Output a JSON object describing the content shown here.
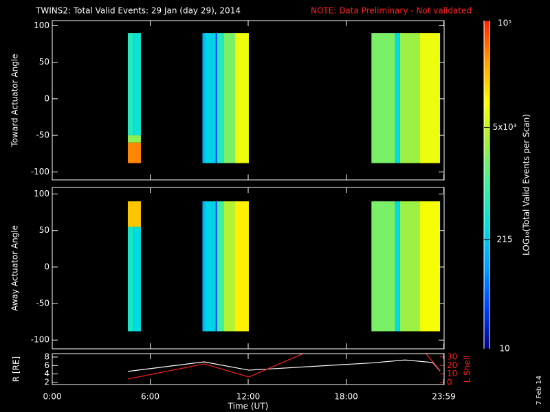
{
  "title": "TWINS2: Total Valid Events: 29 Jan (day  29), 2014",
  "note": "NOTE: Data Preliminary - Not validated",
  "stamp": "7 Feb 14",
  "colorbar": {
    "label": "LOG₁₀(Total Valid Events per Scan)",
    "log": true,
    "lim": [
      10,
      100000
    ],
    "ticks": [
      {
        "value": 100000,
        "label": "10⁵"
      },
      {
        "value": 5000,
        "label": "5x10³"
      },
      215,
      10
    ],
    "colors": [
      "#000080",
      "#0040ff",
      "#00a0ff",
      "#00e0e0",
      "#40f0a0",
      "#a0f040",
      "#ffff00",
      "#ffa000",
      "#ff2000"
    ]
  },
  "chart_data": [
    {
      "type": "heatmap",
      "ylabel": "Toward Actuator Angle",
      "xlim": [
        0,
        24
      ],
      "ylim": [
        -111,
        107
      ],
      "yticks": [
        100,
        50,
        0,
        -50,
        -100
      ],
      "cells": [
        {
          "t": [
            4.63,
            5.0
          ],
          "angle": [
            -50,
            90
          ],
          "value": 600
        },
        {
          "t": [
            5.0,
            5.43
          ],
          "angle": [
            -50,
            90
          ],
          "value": 400
        },
        {
          "t": [
            4.63,
            5.43
          ],
          "angle": [
            -60,
            -50
          ],
          "value": 2500
        },
        {
          "t": [
            4.63,
            5.43
          ],
          "angle": [
            -88,
            -60
          ],
          "value": 40000
        },
        {
          "t": [
            9.2,
            9.35
          ],
          "angle": [
            -88,
            90
          ],
          "value": 150
        },
        {
          "t": [
            9.35,
            10.0
          ],
          "angle": [
            -88,
            90
          ],
          "value": 250
        },
        {
          "t": [
            10.0,
            10.1
          ],
          "angle": [
            -88,
            90
          ],
          "value": 40
        },
        {
          "t": [
            10.1,
            10.5
          ],
          "angle": [
            -88,
            90
          ],
          "value": 600
        },
        {
          "t": [
            10.5,
            11.2
          ],
          "angle": [
            -88,
            90
          ],
          "value": 2000
        },
        {
          "t": [
            11.2,
            12.04
          ],
          "angle": [
            -88,
            90
          ],
          "value": 8000
        },
        {
          "t": [
            19.55,
            21.0
          ],
          "angle": [
            -88,
            90
          ],
          "value": 2000
        },
        {
          "t": [
            21.0,
            21.3
          ],
          "angle": [
            -88,
            90
          ],
          "value": 300
        },
        {
          "t": [
            21.3,
            22.5
          ],
          "angle": [
            -88,
            90
          ],
          "value": 3000
        },
        {
          "t": [
            22.5,
            23.75
          ],
          "angle": [
            -88,
            90
          ],
          "value": 8000
        }
      ]
    },
    {
      "type": "heatmap",
      "ylabel": "Away Actuator Angle",
      "xlim": [
        0,
        24
      ],
      "ylim": [
        -112,
        109
      ],
      "yticks": [
        100,
        50,
        0,
        -50,
        -100
      ],
      "cells": [
        {
          "t": [
            4.63,
            5.43
          ],
          "angle": [
            55,
            90
          ],
          "value": 20000
        },
        {
          "t": [
            4.63,
            5.0
          ],
          "angle": [
            -88,
            55
          ],
          "value": 500
        },
        {
          "t": [
            5.0,
            5.43
          ],
          "angle": [
            -88,
            55
          ],
          "value": 300
        },
        {
          "t": [
            9.2,
            9.35
          ],
          "angle": [
            -88,
            90
          ],
          "value": 150
        },
        {
          "t": [
            9.35,
            10.0
          ],
          "angle": [
            -88,
            90
          ],
          "value": 250
        },
        {
          "t": [
            10.0,
            10.1
          ],
          "angle": [
            -88,
            90
          ],
          "value": 40
        },
        {
          "t": [
            10.1,
            10.5
          ],
          "angle": [
            -88,
            90
          ],
          "value": 1000
        },
        {
          "t": [
            10.5,
            11.2
          ],
          "angle": [
            -88,
            90
          ],
          "value": 4000
        },
        {
          "t": [
            11.2,
            12.04
          ],
          "angle": [
            -88,
            90
          ],
          "value": 12000
        },
        {
          "t": [
            19.55,
            21.0
          ],
          "angle": [
            -88,
            90
          ],
          "value": 2000
        },
        {
          "t": [
            21.0,
            21.3
          ],
          "angle": [
            -88,
            90
          ],
          "value": 300
        },
        {
          "t": [
            21.3,
            22.5
          ],
          "angle": [
            -88,
            90
          ],
          "value": 3000
        },
        {
          "t": [
            22.5,
            23.75
          ],
          "angle": [
            -88,
            90
          ],
          "value": 9000
        }
      ]
    },
    {
      "type": "line",
      "ylabel": "R [RE]",
      "y2label": "L Shell",
      "xlabel": "Time (UT)",
      "xlim": [
        0,
        24
      ],
      "ylim": [
        1.5,
        8.8
      ],
      "yticks": [
        2,
        4,
        6,
        8
      ],
      "y2lim": [
        -2.4,
        34
      ],
      "y2ticks": [
        0,
        10,
        20,
        30
      ],
      "xticks": [
        {
          "value": 0,
          "label": "0:00"
        },
        {
          "value": 6,
          "label": "6:00"
        },
        {
          "value": 12,
          "label": "12:00"
        },
        {
          "value": 18,
          "label": "18:00"
        },
        {
          "value": 23.98,
          "label": "23:59"
        }
      ],
      "series": [
        {
          "name": "R",
          "color": "#ffffff",
          "x": [
            4.63,
            9.3,
            12.04,
            19.55,
            21.6,
            23.3,
            23.75
          ],
          "values": [
            4.6,
            6.85,
            4.9,
            6.6,
            7.3,
            6.7,
            4.7
          ]
        },
        {
          "name": "L Shell",
          "color": "#ff2020",
          "axis": "y2",
          "x": [
            4.63,
            9.3,
            12.04,
            15.6,
            null,
            22.8,
            23.75
          ],
          "values": [
            4.1,
            21.9,
            6.5,
            36,
            null,
            36,
            14
          ]
        }
      ]
    }
  ]
}
